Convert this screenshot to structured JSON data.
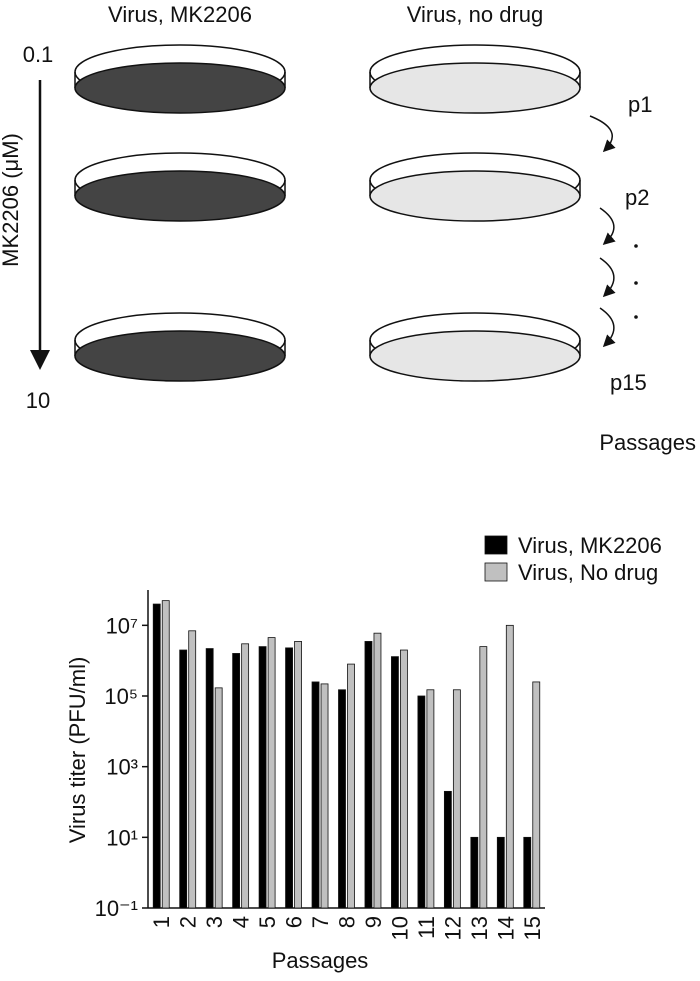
{
  "diagram": {
    "left_title": "Virus, MK2206",
    "right_title": "Virus, no drug",
    "conc_top": "0.1",
    "conc_bottom": "10",
    "conc_axis": "MK2206 (μM)",
    "passages": [
      "p1",
      "p2",
      "p15"
    ],
    "passages_label": "Passages"
  },
  "chart_data": {
    "type": "bar",
    "ylabel": "Virus titer (PFU/ml)",
    "xlabel": "Passages",
    "categories": [
      "1",
      "2",
      "3",
      "4",
      "5",
      "6",
      "7",
      "8",
      "9",
      "10",
      "11",
      "12",
      "13",
      "14",
      "15"
    ],
    "log_scale": true,
    "legend": "top-right",
    "ylim": [
      0.1,
      100000000
    ],
    "yticks": [
      {
        "value": 0.1,
        "label": "10⁻¹"
      },
      {
        "value": 10,
        "label": "10¹"
      },
      {
        "value": 1000,
        "label": "10³"
      },
      {
        "value": 100000,
        "label": "10⁵"
      },
      {
        "value": 10000000,
        "label": "10⁷"
      }
    ],
    "series": [
      {
        "name": "Virus, MK2206",
        "color": "#000000",
        "values": [
          40000000,
          2000000,
          2200000,
          1600000,
          2500000,
          2300000,
          250000,
          150000,
          3500000,
          1300000,
          100000,
          200,
          10,
          10,
          10
        ]
      },
      {
        "name": "Virus, No drug",
        "color": "#c0c0c0",
        "values": [
          50000000,
          7000000,
          170000,
          3000000,
          4500000,
          3500000,
          220000,
          800000,
          6000000,
          2000000,
          150000,
          150000,
          2500000,
          10000000,
          250000
        ]
      }
    ]
  }
}
